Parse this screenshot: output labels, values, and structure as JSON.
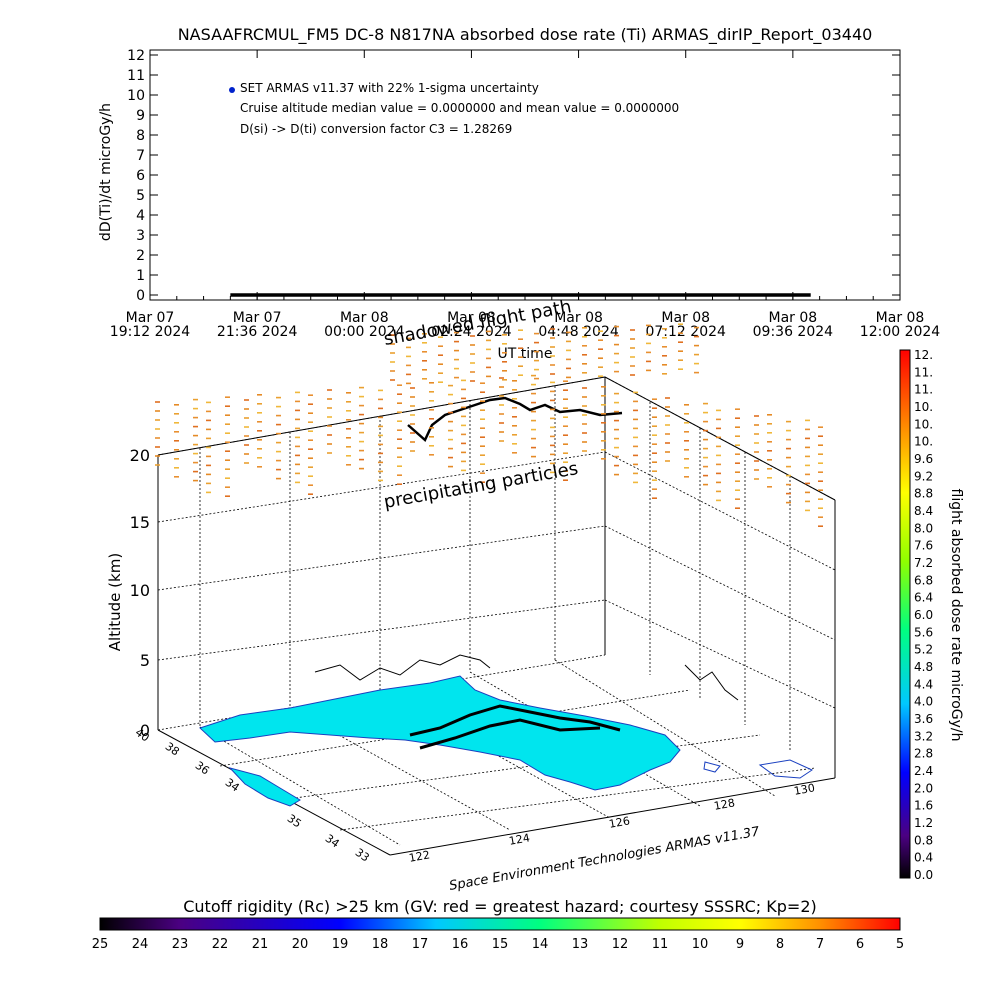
{
  "header": {
    "title": "NASAAFRCMUL_FM5 DC-8   N817NA absorbed dose rate (Ti) ARMAS_dirIP_Report_03440"
  },
  "chart_data": [
    {
      "type": "line",
      "ylabel": "dD(Ti)/dt microGy/h",
      "xlabel": "UT time",
      "ylim": [
        0,
        12
      ],
      "y_ticks": [
        "0",
        "1",
        "2",
        "3",
        "4",
        "5",
        "6",
        "7",
        "8",
        "9",
        "10",
        "11",
        "12"
      ],
      "x_ticks": [
        {
          "date": "Mar 07",
          "time": "19:12 2024"
        },
        {
          "date": "Mar 07",
          "time": "21:36 2024"
        },
        {
          "date": "Mar 08",
          "time": "00:00 2024"
        },
        {
          "date": "Mar 08",
          "time": "02:24 2024"
        },
        {
          "date": "Mar 08",
          "time": "04:48 2024"
        },
        {
          "date": "Mar 08",
          "time": "07:12 2024"
        },
        {
          "date": "Mar 08",
          "time": "09:36 2024"
        },
        {
          "date": "Mar 08",
          "time": "12:00 2024"
        }
      ],
      "xlim": [
        "2024-03-07 19:12",
        "2024-03-08 12:00"
      ],
      "series": [
        {
          "name": "SET ARMAS v11.37 with 22% 1-sigma uncertainty",
          "x_start": "2024-03-07 21:00",
          "x_end": "2024-03-08 10:00",
          "values": [
            0,
            0
          ],
          "color": "#000000"
        }
      ],
      "annotations": [
        "SET ARMAS v11.37 with 22% 1-sigma uncertainty",
        "Cruise altitude median value = 0.0000000 and mean value = 0.0000000",
        "D(si) -> D(ti) conversion factor C3 = 1.28269"
      ],
      "legend_marker_color": "#0022cc"
    },
    {
      "type": "scatter",
      "zlabel": "Altitude (km)",
      "z_ticks": [
        "0",
        "5",
        "10",
        "15",
        "20"
      ],
      "lat_ticks": [
        "40",
        "38",
        "36",
        "34",
        "35",
        "34",
        "33"
      ],
      "lon_ticks": [
        "122",
        "124",
        "126",
        "128",
        "130"
      ],
      "annotations": [
        "shadowed flight path",
        "precipitating particles"
      ],
      "credit": "Space Environment Technologies ARMAS v11.37",
      "land_color": "#00e5ee",
      "flight_path_color": "#000000"
    }
  ],
  "dose_colorbar": {
    "label": "flight absorbed dose rate microGy/h",
    "ticks": [
      "12.",
      "11.",
      "11.",
      "10.",
      "10.",
      "10.",
      "9.6",
      "9.2",
      "8.8",
      "8.4",
      "8.0",
      "7.6",
      "7.2",
      "6.8",
      "6.4",
      "6.0",
      "5.6",
      "5.2",
      "4.8",
      "4.4",
      "4.0",
      "3.6",
      "3.2",
      "2.8",
      "2.4",
      "2.0",
      "1.6",
      "1.2",
      "0.8",
      "0.4",
      "0.0"
    ]
  },
  "rigidity_colorbar": {
    "label": "Cutoff rigidity (Rc) >25 km (GV: red = greatest hazard; courtesy SSSRC; Kp=2)",
    "ticks": [
      "25",
      "24",
      "23",
      "22",
      "21",
      "20",
      "19",
      "18",
      "17",
      "16",
      "15",
      "14",
      "13",
      "12",
      "11",
      "10",
      "9",
      "8",
      "7",
      "6",
      "5"
    ]
  }
}
